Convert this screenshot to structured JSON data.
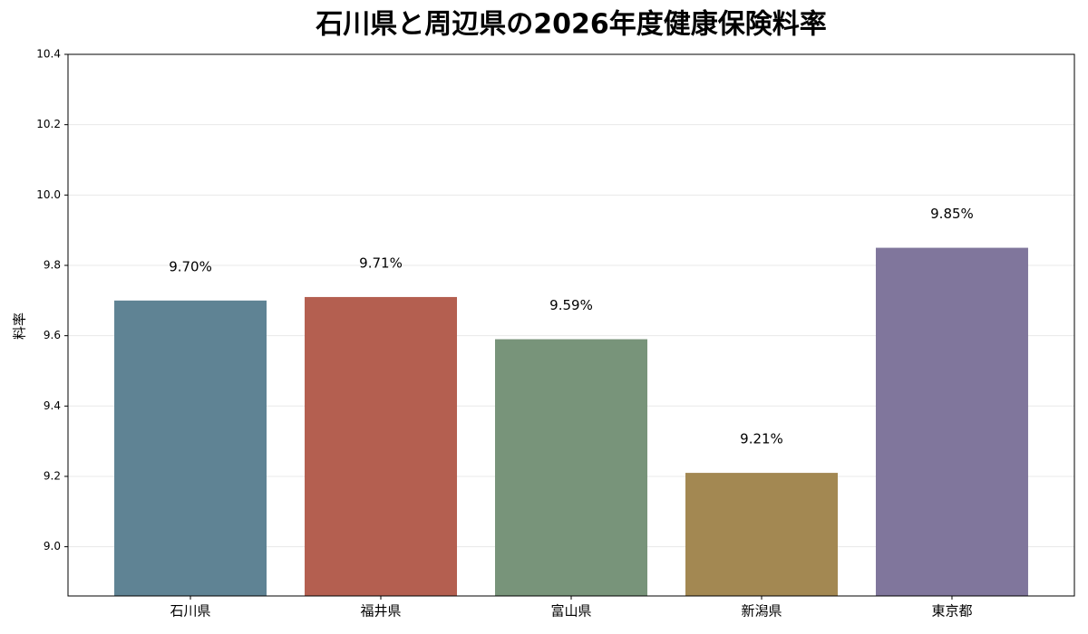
{
  "chart_data": {
    "type": "bar",
    "title": "石川県と周辺県の2026年度健康保険料率",
    "y_label": "料率",
    "categories": [
      "石川県",
      "福井県",
      "富山県",
      "新潟県",
      "東京都"
    ],
    "values": [
      9.7,
      9.71,
      9.59,
      9.21,
      9.85
    ],
    "value_labels": [
      "9.70%",
      "9.71%",
      "9.59%",
      "9.21%",
      "9.85%"
    ],
    "colors": [
      "#5f8394",
      "#b45f50",
      "#78947a",
      "#a38852",
      "#80769c"
    ],
    "ylim": [
      8.86,
      10.4
    ],
    "yticks": [
      {
        "value": 9.0,
        "label": "9.0"
      },
      9.2,
      9.4,
      9.6,
      9.8,
      {
        "value": 10.0,
        "label": "10.0"
      },
      10.2,
      10.4
    ],
    "grid": true
  }
}
